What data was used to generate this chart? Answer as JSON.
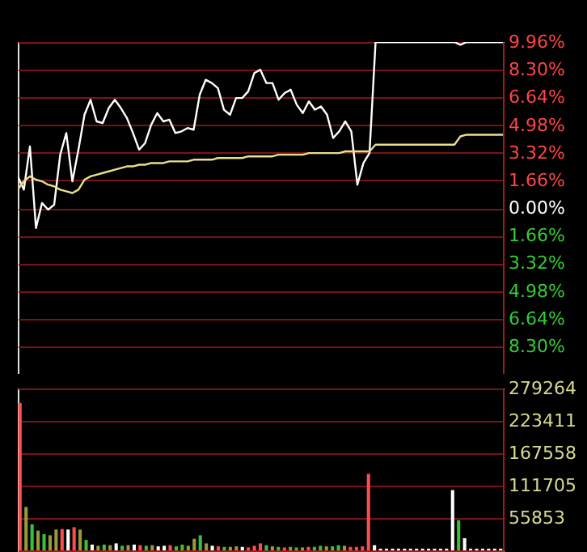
{
  "chart_data": [
    {
      "type": "line",
      "categories": [
        null,
        null,
        null,
        null,
        null,
        null,
        null,
        null,
        null,
        null,
        null,
        null,
        null,
        null,
        null,
        null,
        null,
        null,
        null,
        null,
        null,
        null,
        null,
        null,
        null,
        null,
        null,
        null,
        null,
        null,
        null,
        null,
        null,
        null,
        null,
        null,
        null,
        null,
        null,
        null,
        null,
        null,
        null,
        null,
        null,
        null,
        null,
        null,
        null,
        null,
        null,
        null,
        null,
        null,
        null,
        null,
        null,
        null,
        null,
        null,
        null,
        null,
        null,
        null,
        null,
        null,
        null,
        null,
        null,
        null,
        null,
        null,
        null,
        null,
        null,
        null,
        null,
        null,
        null,
        null,
        null
      ],
      "series": [
        {
          "color": "#ffffff",
          "values": [
            1.9,
            1.1,
            3.7,
            -1.2,
            0.3,
            -0.1,
            0.2,
            3.2,
            4.5,
            1.6,
            3.5,
            5.6,
            6.5,
            5.2,
            5.1,
            6.0,
            6.5,
            6.0,
            5.4,
            4.5,
            3.5,
            3.9,
            5.0,
            5.7,
            5.2,
            5.3,
            4.5,
            4.6,
            4.8,
            4.7,
            6.8,
            7.7,
            7.5,
            7.2,
            5.9,
            5.6,
            6.6,
            6.6,
            7.0,
            8.1,
            8.3,
            7.5,
            7.5,
            6.5,
            6.9,
            7.1,
            6.2,
            5.7,
            6.4,
            5.9,
            6.1,
            5.6,
            4.2,
            4.6,
            5.2,
            4.6,
            1.4,
            2.7,
            3.3,
            9.96,
            9.96,
            9.96,
            9.96,
            9.96,
            9.96,
            9.96,
            9.96,
            9.96,
            9.96,
            9.96,
            9.96,
            9.96,
            9.96,
            9.8,
            9.96,
            9.96,
            9.96,
            9.96,
            9.96,
            9.96,
            9.96
          ]
        },
        {
          "color": "#e8e08a",
          "values": [
            1.1,
            1.6,
            1.9,
            1.7,
            1.6,
            1.4,
            1.3,
            1.1,
            1.0,
            0.9,
            1.1,
            1.7,
            1.9,
            2.0,
            2.1,
            2.2,
            2.3,
            2.4,
            2.5,
            2.5,
            2.6,
            2.6,
            2.7,
            2.7,
            2.7,
            2.8,
            2.8,
            2.8,
            2.8,
            2.9,
            2.9,
            2.9,
            2.9,
            3.0,
            3.0,
            3.0,
            3.0,
            3.0,
            3.1,
            3.1,
            3.1,
            3.1,
            3.1,
            3.2,
            3.2,
            3.2,
            3.2,
            3.2,
            3.3,
            3.3,
            3.3,
            3.3,
            3.3,
            3.3,
            3.4,
            3.4,
            3.4,
            3.4,
            3.4,
            3.8,
            3.8,
            3.8,
            3.8,
            3.8,
            3.8,
            3.8,
            3.8,
            3.8,
            3.8,
            3.8,
            3.8,
            3.8,
            3.8,
            4.3,
            4.4,
            4.4,
            4.4,
            4.4,
            4.4,
            4.4,
            4.4
          ]
        }
      ],
      "ylim": [
        -9.96,
        9.96
      ],
      "yticks": [
        {
          "value": 9.96,
          "label": "9.96%"
        },
        {
          "value": 8.3,
          "label": "8.30%"
        },
        {
          "value": 6.64,
          "label": "6.64%"
        },
        {
          "value": 4.98,
          "label": "4.98%"
        },
        {
          "value": 3.32,
          "label": "3.32%"
        },
        {
          "value": 1.66,
          "label": "1.66%"
        },
        {
          "value": 0,
          "label": "0.00%"
        },
        {
          "value": -1.66,
          "label": "1.66%"
        },
        {
          "value": -3.32,
          "label": "3.32%"
        },
        {
          "value": -4.98,
          "label": "4.98%"
        },
        {
          "value": -6.64,
          "label": "6.64%"
        },
        {
          "value": -8.3,
          "label": "8.30%"
        }
      ],
      "grid": "y",
      "tick_labels": "y",
      "line_style": "solid",
      "marker": "none"
    },
    {
      "type": "bar",
      "categories": [
        null,
        null,
        null,
        null,
        null,
        null,
        null,
        null,
        null,
        null,
        null,
        null,
        null,
        null,
        null,
        null,
        null,
        null,
        null,
        null,
        null,
        null,
        null,
        null,
        null,
        null,
        null,
        null,
        null,
        null,
        null,
        null,
        null,
        null,
        null,
        null,
        null,
        null,
        null,
        null,
        null,
        null,
        null,
        null,
        null,
        null,
        null,
        null,
        null,
        null,
        null,
        null,
        null,
        null,
        null,
        null,
        null,
        null,
        null,
        null,
        null,
        null,
        null,
        null,
        null,
        null,
        null,
        null,
        null,
        null,
        null,
        null,
        null,
        null,
        null,
        null,
        null,
        null,
        null,
        null,
        null
      ],
      "values": [
        254000,
        75000,
        45000,
        34000,
        28000,
        26000,
        36000,
        37000,
        36000,
        40000,
        36000,
        18000,
        10000,
        8000,
        10000,
        9000,
        12000,
        8000,
        9000,
        10000,
        9000,
        8000,
        9000,
        7000,
        8000,
        9000,
        7000,
        10000,
        8000,
        20000,
        26000,
        12000,
        8000,
        7000,
        6000,
        6000,
        7000,
        6000,
        5000,
        8000,
        12000,
        9000,
        7000,
        6000,
        5000,
        6000,
        5000,
        5000,
        6000,
        6000,
        8000,
        7000,
        7000,
        9000,
        8000,
        6000,
        6000,
        7000,
        132000,
        9000,
        3000,
        3000,
        3000,
        3000,
        3000,
        3000,
        3000,
        3000,
        3000,
        3000,
        3000,
        3000,
        104000,
        52000,
        21000,
        3000,
        3000,
        3000,
        3000,
        3000,
        3000
      ],
      "colors": [
        "#ff4c4c",
        "#9a9a3a",
        "#35c435",
        "#9a9a3a",
        "#35c435",
        "#9a9a3a",
        "#9a9a3a",
        "#ff4c4c",
        "#ffffff",
        "#ff4c4c",
        "#9a9a3a",
        "#35c435",
        "#ffffff",
        "#9a9a3a",
        "#35c435",
        "#9a9a3a",
        "#ffffff",
        "#35c435",
        "#9a9a3a",
        "#ffffff",
        "#ff4c4c",
        "#35c435",
        "#9a9a3a",
        "#ffffff",
        "#ffffff",
        "#ff4c4c",
        "#35c435",
        "#35c435",
        "#9a9a3a",
        "#9a9a3a",
        "#35c435",
        "#9a9a3a",
        "#ffffff",
        "#ff4c4c",
        "#35c435",
        "#9a9a3a",
        "#9a9a3a",
        "#ffffff",
        "#ff4c4c",
        "#ff4c4c",
        "#ff4c4c",
        "#35c435",
        "#9a9a3a",
        "#35c435",
        "#ff4c4c",
        "#9a9a3a",
        "#35c435",
        "#9a9a3a",
        "#ff4c4c",
        "#35c435",
        "#35c435",
        "#9a9a3a",
        "#35c435",
        "#35c435",
        "#9a9a3a",
        "#ff4c4c",
        "#ff4c4c",
        "#ff4c4c",
        "#ff4c4c",
        "#ffffff",
        "#ffffff",
        "#ffffff",
        "#ffffff",
        "#ffffff",
        "#ffffff",
        "#ffffff",
        "#ffffff",
        "#ffffff",
        "#ffffff",
        "#ffffff",
        "#ffffff",
        "#ffffff",
        "#ffffff",
        "#35c435",
        "#ffffff",
        "#ffffff",
        "#ffffff",
        "#ffffff",
        "#ffffff",
        "#ffffff",
        "#ffffff"
      ],
      "ylim": [
        0,
        279264
      ],
      "yticks": [
        279264,
        223411,
        167558,
        111705,
        55853
      ],
      "grid": "y",
      "tick_labels": "y"
    }
  ]
}
